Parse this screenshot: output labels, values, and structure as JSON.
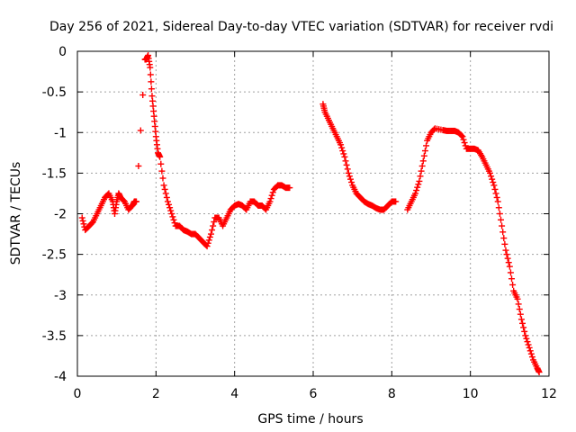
{
  "chart_data": {
    "type": "scatter",
    "title": "Day 256 of 2021, Sidereal Day-to-day VTEC variation (SDTVAR) for receiver rvdi",
    "xlabel": "GPS time / hours",
    "ylabel": "SDTVAR / TECUs",
    "xlim": [
      0,
      12
    ],
    "ylim": [
      -4,
      0
    ],
    "xticks": [
      "0",
      "2",
      "4",
      "6",
      "8",
      "10",
      "12"
    ],
    "yticks": [
      "0",
      "-0.5",
      "-1",
      "-1.5",
      "-2",
      "-2.5",
      "-3",
      "-3.5",
      "-4"
    ],
    "grid": true,
    "marker": "plus",
    "color": "#ff0000",
    "series": [
      {
        "name": "SDTVAR",
        "x": [
          0.12,
          0.2,
          0.3,
          0.4,
          0.5,
          0.6,
          0.7,
          0.8,
          0.9,
          0.95,
          1.0,
          1.05,
          1.1,
          1.2,
          1.3,
          1.4,
          1.45,
          1.5,
          1.72,
          1.75,
          1.8,
          1.85,
          1.9,
          1.95,
          2.0,
          2.05,
          2.1,
          2.2,
          2.3,
          2.4,
          2.5,
          2.6,
          2.7,
          2.8,
          2.9,
          3.0,
          3.1,
          3.2,
          3.3,
          3.4,
          3.5,
          3.6,
          3.7,
          3.8,
          3.9,
          4.0,
          4.1,
          4.2,
          4.3,
          4.4,
          4.5,
          4.6,
          4.7,
          4.8,
          4.9,
          5.0,
          5.1,
          5.2,
          5.3,
          5.4,
          6.25,
          6.3,
          6.4,
          6.5,
          6.6,
          6.7,
          6.8,
          6.9,
          7.0,
          7.1,
          7.2,
          7.3,
          7.4,
          7.5,
          7.6,
          7.7,
          7.8,
          7.9,
          8.0,
          8.1,
          8.4,
          8.5,
          8.6,
          8.7,
          8.8,
          8.9,
          9.0,
          9.1,
          9.3,
          9.4,
          9.5,
          9.6,
          9.7,
          9.8,
          9.9,
          10.0,
          10.1,
          10.2,
          10.3,
          10.4,
          10.5,
          10.6,
          10.7,
          10.8,
          10.9,
          11.0,
          11.1,
          11.2,
          11.3,
          11.4,
          11.5,
          11.6,
          11.7,
          11.75
        ],
        "y": [
          -2.05,
          -2.2,
          -2.15,
          -2.1,
          -2.0,
          -1.9,
          -1.8,
          -1.75,
          -1.85,
          -2.0,
          -1.85,
          -1.75,
          -1.8,
          -1.85,
          -1.95,
          -1.9,
          -1.85,
          -1.85,
          -0.1,
          -0.1,
          -0.05,
          -0.2,
          -0.55,
          -0.8,
          -1.05,
          -1.25,
          -1.3,
          -1.65,
          -1.85,
          -2.0,
          -2.15,
          -2.15,
          -2.2,
          -2.22,
          -2.25,
          -2.25,
          -2.3,
          -2.35,
          -2.4,
          -2.25,
          -2.05,
          -2.05,
          -2.15,
          -2.05,
          -1.95,
          -1.9,
          -1.88,
          -1.9,
          -1.95,
          -1.85,
          -1.85,
          -1.9,
          -1.9,
          -1.95,
          -1.85,
          -1.7,
          -1.65,
          -1.65,
          -1.68,
          -1.68,
          -0.65,
          -0.75,
          -0.85,
          -0.95,
          -1.05,
          -1.15,
          -1.3,
          -1.5,
          -1.65,
          -1.75,
          -1.8,
          -1.85,
          -1.88,
          -1.9,
          -1.93,
          -1.95,
          -1.95,
          -1.9,
          -1.85,
          -1.85,
          -1.95,
          -1.85,
          -1.75,
          -1.6,
          -1.35,
          -1.1,
          -1.0,
          -0.95,
          -0.97,
          -0.98,
          -0.98,
          -0.98,
          -1.0,
          -1.05,
          -1.2,
          -1.2,
          -1.2,
          -1.22,
          -1.3,
          -1.4,
          -1.5,
          -1.65,
          -1.85,
          -2.15,
          -2.45,
          -2.65,
          -2.95,
          -3.05,
          -3.3,
          -3.5,
          -3.65,
          -3.8,
          -3.9,
          -3.95
        ]
      }
    ]
  }
}
